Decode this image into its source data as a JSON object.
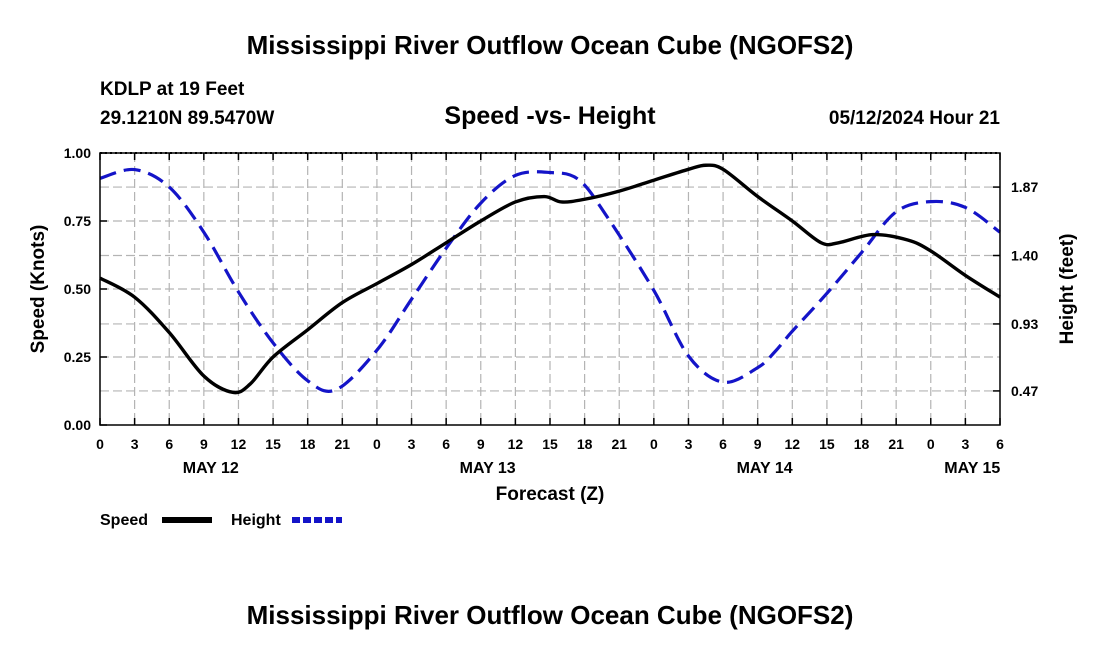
{
  "header": {
    "title": "Mississippi River Outflow Ocean Cube (NGOFS2)",
    "station": "KDLP at 19 Feet",
    "coords": "29.1210N  89.5470W",
    "subtitle": "Speed -vs- Height",
    "datetime": "05/12/2024 Hour 21"
  },
  "footer": {
    "title": "Mississippi River Outflow Ocean Cube (NGOFS2)"
  },
  "chart_data": {
    "type": "line",
    "title": "Speed -vs- Height",
    "xlabel": "Forecast (Z)",
    "ylabel": "Speed (Knots)",
    "y2label": "Height (feet)",
    "x_unit": "hours since May 12 00Z",
    "xlim": [
      0,
      78
    ],
    "ylim": [
      0,
      1.0
    ],
    "y2lim": [
      0.236,
      2.104
    ],
    "x_ticks": [
      0,
      3,
      6,
      9,
      12,
      15,
      18,
      21,
      24,
      27,
      30,
      33,
      36,
      39,
      42,
      45,
      48,
      51,
      54,
      57,
      60,
      63,
      66,
      69,
      72,
      75,
      78
    ],
    "x_tick_labels": [
      "0",
      "3",
      "6",
      "9",
      "12",
      "15",
      "18",
      "21",
      "0",
      "3",
      "6",
      "9",
      "12",
      "15",
      "18",
      "21",
      "0",
      "3",
      "6",
      "9",
      "12",
      "15",
      "18",
      "21",
      "0",
      "3",
      "6"
    ],
    "day_labels": [
      {
        "label": "MAY 12",
        "x": 9.6
      },
      {
        "label": "MAY 13",
        "x": 33.6
      },
      {
        "label": "MAY 14",
        "x": 57.6
      },
      {
        "label": "MAY 15",
        "x": 75.6
      }
    ],
    "y_ticks": [
      0,
      0.25,
      0.5,
      0.75,
      1.0
    ],
    "y_tick_labels": [
      "0.00",
      "0.25",
      "0.50",
      "0.75",
      "1.00"
    ],
    "y2_ticks": [
      0.47,
      0.93,
      1.4,
      1.87
    ],
    "y2_tick_labels": [
      "0.47",
      "0.93",
      "1.40",
      "1.87"
    ],
    "grid": true,
    "legend_position": "bottom-left",
    "series": [
      {
        "name": "Speed",
        "axis": "left",
        "color": "#000000",
        "style": "solid",
        "x": [
          0,
          3,
          6,
          9,
          11.5,
          13,
          15,
          18,
          21,
          24,
          27,
          30,
          33,
          36,
          38.5,
          40,
          42,
          45,
          48,
          51,
          52.5,
          54,
          57,
          60,
          62.5,
          64,
          67,
          70,
          72,
          75,
          78
        ],
        "y": [
          0.54,
          0.47,
          0.34,
          0.18,
          0.12,
          0.15,
          0.25,
          0.35,
          0.45,
          0.52,
          0.59,
          0.67,
          0.75,
          0.82,
          0.84,
          0.82,
          0.83,
          0.86,
          0.9,
          0.94,
          0.955,
          0.94,
          0.84,
          0.75,
          0.67,
          0.67,
          0.7,
          0.68,
          0.64,
          0.55,
          0.47
        ]
      },
      {
        "name": "Height",
        "axis": "right",
        "color": "#1414c8",
        "style": "dashed",
        "x": [
          0,
          3,
          6,
          9,
          12,
          15,
          18,
          20.5,
          24,
          27,
          30,
          33,
          36,
          39,
          41.5,
          44,
          48,
          51,
          54,
          57,
          58.5,
          60,
          63,
          66,
          69,
          72,
          75,
          78
        ],
        "y": [
          1.93,
          1.99,
          1.87,
          1.56,
          1.15,
          0.8,
          0.54,
          0.48,
          0.75,
          1.1,
          1.45,
          1.76,
          1.95,
          1.97,
          1.92,
          1.66,
          1.16,
          0.71,
          0.53,
          0.63,
          0.74,
          0.88,
          1.14,
          1.42,
          1.7,
          1.77,
          1.73,
          1.56
        ]
      }
    ]
  }
}
